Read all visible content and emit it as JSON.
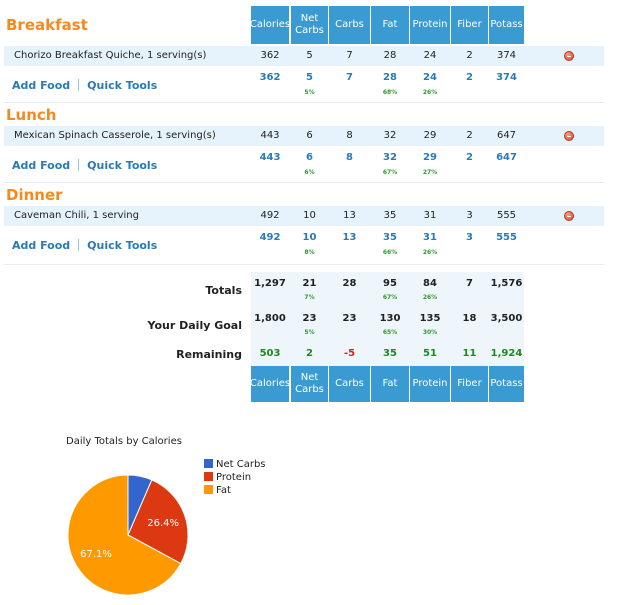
{
  "columns": [
    "Calories",
    "Net Carbs",
    "Carbs",
    "Fat",
    "Protein",
    "Fiber",
    "Potass"
  ],
  "meals": [
    {
      "title": "Breakfast",
      "food": "Chorizo Breakfast Quiche, 1 serving(s)",
      "values": [
        "362",
        "5",
        "7",
        "28",
        "24",
        "2",
        "374"
      ],
      "summary": [
        "362",
        "5",
        "7",
        "28",
        "24",
        "2",
        "374"
      ],
      "pcts": {
        "net_carbs": "5%",
        "fat": "68%",
        "protein": "26%"
      }
    },
    {
      "title": "Lunch",
      "food": "Mexican Spinach Casserole, 1 serving(s)",
      "values": [
        "443",
        "6",
        "8",
        "32",
        "29",
        "2",
        "647"
      ],
      "summary": [
        "443",
        "6",
        "8",
        "32",
        "29",
        "2",
        "647"
      ],
      "pcts": {
        "net_carbs": "6%",
        "fat": "67%",
        "protein": "27%"
      }
    },
    {
      "title": "Dinner",
      "food": "Caveman Chili, 1 serving",
      "values": [
        "492",
        "10",
        "13",
        "35",
        "31",
        "3",
        "555"
      ],
      "summary": [
        "492",
        "10",
        "13",
        "35",
        "31",
        "3",
        "555"
      ],
      "pcts": {
        "net_carbs": "8%",
        "fat": "66%",
        "protein": "26%"
      }
    }
  ],
  "links": {
    "add_food": "Add Food",
    "quick_tools": "Quick Tools"
  },
  "totals": {
    "label": "Totals",
    "values": [
      "1,297",
      "21",
      "28",
      "95",
      "84",
      "7",
      "1,576"
    ],
    "pcts": {
      "net_carbs": "7%",
      "fat": "67%",
      "protein": "26%"
    }
  },
  "goal": {
    "label": "Your Daily Goal",
    "values": [
      "1,800",
      "23",
      "23",
      "130",
      "135",
      "18",
      "3,500"
    ],
    "pcts": {
      "net_carbs": "5%",
      "fat": "65%",
      "protein": "30%"
    }
  },
  "remaining": {
    "label": "Remaining",
    "values": [
      "503",
      "2",
      "-5",
      "35",
      "51",
      "11",
      "1,924"
    ]
  },
  "chart_data": {
    "type": "pie",
    "title": "Daily Totals by Calories",
    "labels": [
      "Net Carbs",
      "Protein",
      "Fat"
    ],
    "values": [
      6.5,
      26.4,
      67.1
    ],
    "value_labels": [
      "",
      "26.4%",
      "67.1%"
    ],
    "colors": [
      "#3366cc",
      "#dc3912",
      "#ff9900"
    ],
    "legend": "right"
  }
}
